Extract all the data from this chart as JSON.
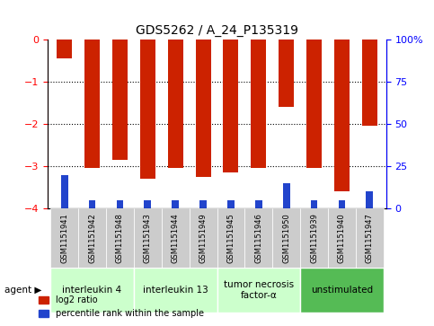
{
  "title": "GDS5262 / A_24_P135319",
  "samples": [
    "GSM1151941",
    "GSM1151942",
    "GSM1151948",
    "GSM1151943",
    "GSM1151944",
    "GSM1151949",
    "GSM1151945",
    "GSM1151946",
    "GSM1151950",
    "GSM1151939",
    "GSM1151940",
    "GSM1151947"
  ],
  "log2_ratio": [
    -0.45,
    -3.05,
    -2.85,
    -3.3,
    -3.05,
    -3.25,
    -3.15,
    -3.05,
    -1.6,
    -3.05,
    -3.6,
    -2.05
  ],
  "percentile": [
    20,
    5,
    5,
    5,
    5,
    5,
    5,
    5,
    15,
    5,
    5,
    10
  ],
  "agents": [
    {
      "label": "interleukin 4",
      "span": [
        0,
        3
      ],
      "color": "#ccffcc"
    },
    {
      "label": "interleukin 13",
      "span": [
        3,
        6
      ],
      "color": "#ccffcc"
    },
    {
      "label": "tumor necrosis\nfactor-α",
      "span": [
        6,
        9
      ],
      "color": "#ccffcc"
    },
    {
      "label": "unstimulated",
      "span": [
        9,
        12
      ],
      "color": "#55bb55"
    }
  ],
  "ylim_left": [
    -4,
    0
  ],
  "ylim_right": [
    0,
    100
  ],
  "yticks_left": [
    0,
    -1,
    -2,
    -3,
    -4
  ],
  "yticks_right": [
    0,
    25,
    50,
    75,
    100
  ],
  "bar_color_red": "#cc2200",
  "bar_color_blue": "#2244cc",
  "bar_width": 0.55,
  "percentile_bar_width": 0.25,
  "background_color": "#ffffff",
  "title_fontsize": 10,
  "sample_fontsize": 6,
  "agent_fontsize": 7.5,
  "legend_fontsize": 7,
  "grid_ticks": [
    -1,
    -2,
    -3
  ]
}
